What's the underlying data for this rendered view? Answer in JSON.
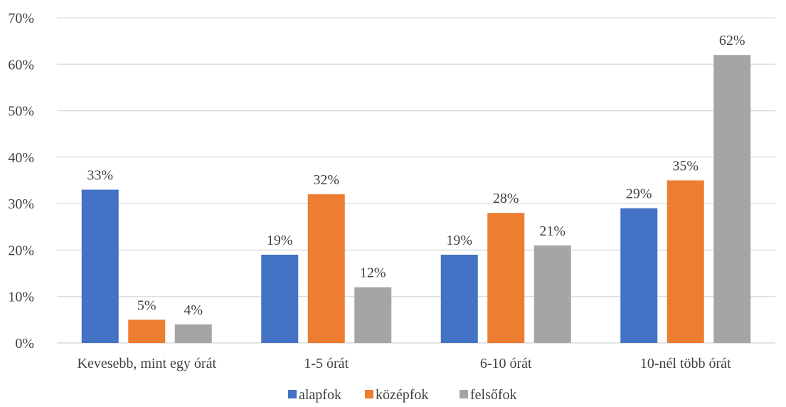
{
  "chart_data": {
    "type": "bar",
    "categories": [
      "Kevesebb, mint egy órát",
      "1-5 órát",
      "6-10 órát",
      "10-nél több órát"
    ],
    "series": [
      {
        "name": "alapfok",
        "color": "#4472C4",
        "values": [
          33,
          19,
          19,
          29
        ]
      },
      {
        "name": "középfok",
        "color": "#ED7D31",
        "values": [
          5,
          32,
          28,
          35
        ]
      },
      {
        "name": "felsőfok",
        "color": "#A5A5A5",
        "values": [
          4,
          12,
          21,
          62
        ]
      }
    ],
    "value_labels": [
      [
        "33%",
        "19%",
        "19%",
        "29%"
      ],
      [
        "5%",
        "32%",
        "28%",
        "35%"
      ],
      [
        "4%",
        "12%",
        "21%",
        "62%"
      ]
    ],
    "y_ticks": [
      "0%",
      "10%",
      "20%",
      "30%",
      "40%",
      "50%",
      "60%",
      "70%"
    ],
    "ylim": [
      0,
      70
    ],
    "grid": true,
    "legend_position": "bottom"
  }
}
